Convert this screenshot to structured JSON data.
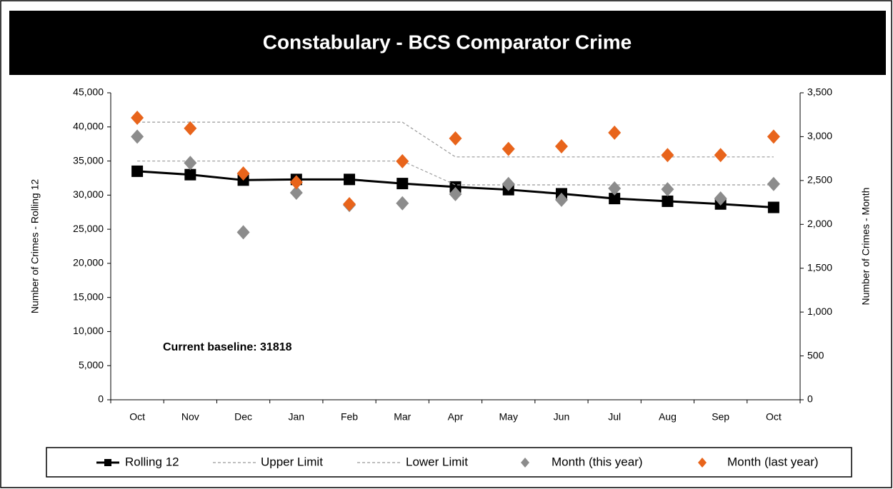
{
  "chart_data": {
    "type": "line",
    "title": "Constabulary - BCS Comparator Crime",
    "y_label": "Number of Crimes  -  Rolling 12",
    "y2_label": "Number of Crimes  -  Month",
    "annotation": "Current baseline: 31818",
    "categories": [
      "Oct",
      "Nov",
      "Dec",
      "Jan",
      "Feb",
      "Mar",
      "Apr",
      "May",
      "Jun",
      "Jul",
      "Aug",
      "Sep",
      "Oct"
    ],
    "ylim": [
      0,
      45000
    ],
    "yticks": [
      0,
      {
        "value": 5000,
        "label": "5,000"
      },
      {
        "value": 10000,
        "label": "10,000"
      },
      {
        "value": 15000,
        "label": "15,000"
      },
      {
        "value": 20000,
        "label": "20,000"
      },
      {
        "value": 25000,
        "label": "25,000"
      },
      {
        "value": 30000,
        "label": "30,000"
      },
      {
        "value": 35000,
        "label": "35,000"
      },
      {
        "value": 40000,
        "label": "40,000"
      },
      {
        "value": 45000,
        "label": "45,000"
      }
    ],
    "y2lim": [
      0,
      3500
    ],
    "y2ticks": [
      0,
      500,
      {
        "value": 1000,
        "label": "1,000"
      },
      {
        "value": 1500,
        "label": "1,500"
      },
      {
        "value": 2000,
        "label": "2,000"
      },
      {
        "value": 2500,
        "label": "2,500"
      },
      {
        "value": 3000,
        "label": "3,000"
      },
      {
        "value": 3500,
        "label": "3,500"
      }
    ],
    "grid": false,
    "legend": "bottom",
    "series": [
      {
        "name": "Rolling 12",
        "color": "#000000",
        "line": "solid",
        "marker": "square",
        "values": [
          33500,
          33000,
          32200,
          32300,
          32300,
          31700,
          31200,
          30800,
          30200,
          29500,
          29100,
          28700,
          28200
        ]
      },
      {
        "name": "Upper Limit",
        "color": "#999999",
        "line": "dashed",
        "marker": "none",
        "values": [
          40700,
          40700,
          40700,
          40700,
          40700,
          40700,
          35600,
          35600,
          35600,
          35600,
          35600,
          35600,
          35600
        ]
      },
      {
        "name": "Lower Limit",
        "color": "#999999",
        "line": "dashed",
        "marker": "none",
        "values": [
          35000,
          35000,
          35000,
          35000,
          35000,
          35000,
          31500,
          31500,
          31500,
          31500,
          31500,
          31500,
          31500
        ]
      },
      {
        "name": "Month (this year)",
        "color": "#8c8c8c",
        "line": "none",
        "marker": "diamond",
        "axis": "y2",
        "values": [
          3000,
          2700,
          1910,
          2360,
          2220,
          2240,
          2345,
          2460,
          2280,
          2410,
          2400,
          2295,
          2460
        ]
      },
      {
        "name": "Month (last year)",
        "color": "#e8641b",
        "line": "none",
        "marker": "diamond",
        "axis": "y2",
        "values": [
          3215,
          3095,
          2580,
          2480,
          2230,
          2720,
          2980,
          2860,
          2890,
          3045,
          2790,
          2790,
          3000
        ]
      }
    ]
  }
}
